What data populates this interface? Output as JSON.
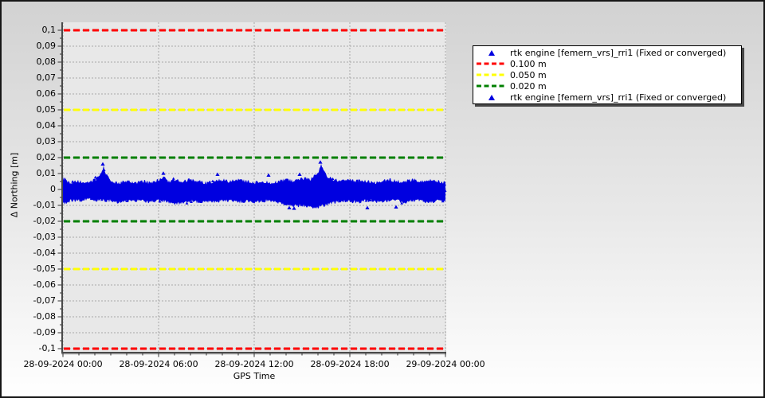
{
  "window": {
    "border_color": "#161616",
    "background_top": "#d2d2d2",
    "background_bottom": "#ffffff"
  },
  "chart_data": {
    "type": "scatter",
    "title": "",
    "xlabel": "GPS Time",
    "ylabel": "Δ Northing [m]",
    "plot_bg": "#e8e8e8",
    "grid_color": "#a8a8a8",
    "axis_color": "#4a4a4a",
    "grid": true,
    "xlim_hours": [
      0,
      24
    ],
    "ylim": [
      -0.1055,
      0.1045
    ],
    "x_ticks": [
      {
        "h": 0,
        "label": "28-09-2024 00:00"
      },
      {
        "h": 6,
        "label": "28-09-2024 06:00"
      },
      {
        "h": 12,
        "label": "28-09-2024 12:00"
      },
      {
        "h": 18,
        "label": "28-09-2024 18:00"
      },
      {
        "h": 24,
        "label": "29-09-2024 00:00"
      }
    ],
    "x_minor_tick_hours": 1,
    "y_ticks": [
      {
        "v": 0.1,
        "label": "0,1"
      },
      {
        "v": 0.09,
        "label": "0,09"
      },
      {
        "v": 0.08,
        "label": "0,08"
      },
      {
        "v": 0.07,
        "label": "0,07"
      },
      {
        "v": 0.06,
        "label": "0,06"
      },
      {
        "v": 0.05,
        "label": "0,05"
      },
      {
        "v": 0.04,
        "label": "0,04"
      },
      {
        "v": 0.03,
        "label": "0,03"
      },
      {
        "v": 0.02,
        "label": "0,02"
      },
      {
        "v": 0.01,
        "label": "0,01"
      },
      {
        "v": 0.0,
        "label": "0"
      },
      {
        "v": -0.01,
        "label": "-0,01"
      },
      {
        "v": -0.02,
        "label": "-0,02"
      },
      {
        "v": -0.03,
        "label": "-0,03"
      },
      {
        "v": -0.04,
        "label": "-0,04"
      },
      {
        "v": -0.05,
        "label": "-0,05"
      },
      {
        "v": -0.06,
        "label": "-0,06"
      },
      {
        "v": -0.07,
        "label": "-0,07"
      },
      {
        "v": -0.08,
        "label": "-0,08"
      },
      {
        "v": -0.09,
        "label": "-0,09"
      },
      {
        "v": -0.1,
        "label": "-0,1"
      }
    ],
    "y_minor_tick_step": 0.005,
    "thresholds": [
      {
        "label": "0.100 m",
        "value": 0.1,
        "color": "#ff0000"
      },
      {
        "label": "0.050 m",
        "value": 0.05,
        "color": "#ffff00"
      },
      {
        "label": "0.020 m",
        "value": 0.02,
        "color": "#008000"
      },
      {
        "label": "0.020 m",
        "value": -0.02,
        "color": "#008000"
      },
      {
        "label": "0.050 m",
        "value": -0.05,
        "color": "#ffff00"
      },
      {
        "label": "0.100 m",
        "value": -0.1,
        "color": "#ff0000"
      }
    ],
    "series": [
      {
        "name": "rtk engine [femern_vrs]_rri1 (Fixed or converged)",
        "color": "#0000e0",
        "marker": "triangle",
        "envelope_hour_lower_upper": [
          [
            0,
            -0.011,
            0.009
          ],
          [
            0.5,
            -0.009,
            0.006
          ],
          [
            1,
            -0.009,
            0.007
          ],
          [
            1.5,
            -0.008,
            0.006
          ],
          [
            2,
            -0.009,
            0.008
          ],
          [
            2.4,
            -0.009,
            0.012
          ],
          [
            2.55,
            -0.009,
            0.016
          ],
          [
            2.7,
            -0.009,
            0.012
          ],
          [
            3,
            -0.009,
            0.007
          ],
          [
            3.5,
            -0.01,
            0.006
          ],
          [
            4,
            -0.009,
            0.007
          ],
          [
            4.5,
            -0.009,
            0.006
          ],
          [
            5,
            -0.009,
            0.007
          ],
          [
            5.5,
            -0.01,
            0.006
          ],
          [
            6,
            -0.009,
            0.008
          ],
          [
            6.3,
            -0.009,
            0.01
          ],
          [
            6.6,
            -0.01,
            0.007
          ],
          [
            7,
            -0.011,
            0.008
          ],
          [
            7.5,
            -0.01,
            0.007
          ],
          [
            8,
            -0.009,
            0.008
          ],
          [
            8.5,
            -0.01,
            0.007
          ],
          [
            9,
            -0.009,
            0.006
          ],
          [
            9.5,
            -0.01,
            0.007
          ],
          [
            10,
            -0.009,
            0.008
          ],
          [
            10.5,
            -0.009,
            0.007
          ],
          [
            11,
            -0.01,
            0.008
          ],
          [
            11.5,
            -0.009,
            0.007
          ],
          [
            12,
            -0.01,
            0.006
          ],
          [
            12.5,
            -0.009,
            0.007
          ],
          [
            13,
            -0.009,
            0.006
          ],
          [
            13.5,
            -0.01,
            0.007
          ],
          [
            14,
            -0.011,
            0.008
          ],
          [
            14.5,
            -0.012,
            0.007
          ],
          [
            15,
            -0.012,
            0.009
          ],
          [
            15.5,
            -0.013,
            0.008
          ],
          [
            16,
            -0.013,
            0.012
          ],
          [
            16.2,
            -0.012,
            0.017
          ],
          [
            16.45,
            -0.012,
            0.012
          ],
          [
            16.7,
            -0.011,
            0.009
          ],
          [
            17,
            -0.01,
            0.008
          ],
          [
            17.5,
            -0.009,
            0.007
          ],
          [
            18,
            -0.009,
            0.008
          ],
          [
            18.5,
            -0.01,
            0.007
          ],
          [
            19,
            -0.009,
            0.007
          ],
          [
            19.5,
            -0.009,
            0.006
          ],
          [
            20,
            -0.01,
            0.007
          ],
          [
            20.5,
            -0.009,
            0.008
          ],
          [
            21,
            -0.009,
            0.007
          ],
          [
            21.5,
            -0.01,
            0.007
          ],
          [
            22,
            -0.009,
            0.008
          ],
          [
            22.5,
            -0.009,
            0.007
          ],
          [
            23,
            -0.01,
            0.008
          ],
          [
            23.5,
            -0.009,
            0.007
          ],
          [
            24,
            -0.009,
            0.006
          ]
        ],
        "outliers_hour_value": [
          [
            2.5,
            0.016
          ],
          [
            6.3,
            0.0102
          ],
          [
            9.7,
            0.0095
          ],
          [
            12.9,
            0.009
          ],
          [
            14.2,
            -0.0115
          ],
          [
            14.5,
            -0.0118
          ],
          [
            14.85,
            0.0095
          ],
          [
            16.15,
            0.0172
          ],
          [
            19.1,
            -0.0115
          ],
          [
            20.9,
            -0.011
          ]
        ]
      }
    ],
    "legend": {
      "position": "right-top",
      "entries": [
        {
          "marker": "triangle",
          "color": "#0000e0",
          "label": "rtk engine [femern_vrs]_rri1 (Fixed or converged)"
        },
        {
          "marker": "dashes",
          "color": "#ff0000",
          "label": "0.100 m"
        },
        {
          "marker": "dashes",
          "color": "#ffff00",
          "label": "0.050 m"
        },
        {
          "marker": "dashes",
          "color": "#008000",
          "label": "0.020 m"
        },
        {
          "marker": "triangle",
          "color": "#0000e0",
          "label": "rtk engine [femern_vrs]_rri1 (Fixed or converged)"
        }
      ]
    }
  }
}
